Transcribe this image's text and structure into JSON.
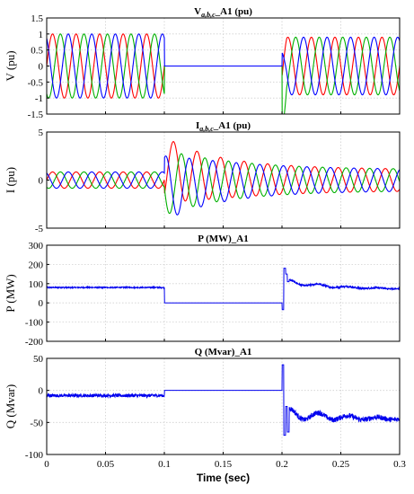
{
  "chart_data": [
    {
      "type": "line",
      "title_parts": [
        "V",
        "a,b,c",
        "_A1 (pu)"
      ],
      "ylabel": "V (pu)",
      "xlabel": "",
      "xlim": [
        0,
        0.3
      ],
      "ylim": [
        -1.5,
        1.5
      ],
      "yticks": [
        -1.5,
        -1,
        -0.5,
        0,
        0.5,
        1,
        1.5
      ],
      "ytick_labels": [
        "-1.5",
        "-1",
        "-0.5",
        "0",
        "0.5",
        "1",
        "1.5"
      ],
      "xticks": [
        0,
        0.05,
        0.1,
        0.15,
        0.2,
        0.25,
        0.3
      ],
      "grid": true,
      "series": [
        {
          "color": "#ff0000",
          "phase_deg": 0
        },
        {
          "color": "#00b000",
          "phase_deg": -120
        },
        {
          "color": "#0000ff",
          "phase_deg": 120
        }
      ],
      "segments": [
        {
          "from": 0,
          "to": 0.1,
          "amplitude": 1.0
        },
        {
          "from": 0.1,
          "to": 0.2,
          "amplitude": 0
        },
        {
          "from": 0.2,
          "to": 0.3,
          "amplitude": 0.9
        }
      ],
      "frequency_hz": 50
    },
    {
      "type": "line",
      "title_parts": [
        "I",
        "a,b,c",
        "_A1 (pu)"
      ],
      "ylabel": "I (pu)",
      "xlabel": "",
      "xlim": [
        0,
        0.3
      ],
      "ylim": [
        -5,
        5
      ],
      "yticks": [
        -5,
        0,
        5
      ],
      "ytick_labels": [
        "-5",
        "0",
        "5"
      ],
      "xticks": [
        0,
        0.05,
        0.1,
        0.15,
        0.2,
        0.25,
        0.3
      ],
      "grid": true,
      "series": [
        {
          "color": "#ff0000",
          "phase_deg": 0
        },
        {
          "color": "#00b000",
          "phase_deg": -120
        },
        {
          "color": "#0000ff",
          "phase_deg": 120
        }
      ],
      "prefault_amplitude": 0.85,
      "fault_start": 0.1,
      "fault_peak_amplitude": 3.4,
      "fault_decay_amplitude_end": 1.1,
      "frequency_hz": 50
    },
    {
      "type": "line",
      "title": "P (MW)_A1",
      "ylabel": "P (MW)",
      "xlabel": "",
      "xlim": [
        0,
        0.3
      ],
      "ylim": [
        -200,
        300
      ],
      "yticks": [
        -200,
        -100,
        0,
        100,
        200,
        300
      ],
      "ytick_labels": [
        "-200",
        "-100",
        "0",
        "100",
        "200",
        "300"
      ],
      "xticks": [
        0,
        0.05,
        0.1,
        0.15,
        0.2,
        0.25,
        0.3
      ],
      "grid": true,
      "series": [
        {
          "color": "#0000ee"
        }
      ],
      "levels": [
        {
          "from": 0,
          "to": 0.1,
          "value": 80
        },
        {
          "from": 0.1,
          "to": 0.2,
          "value": 0
        },
        {
          "from": 0.2,
          "to": 0.3,
          "value_start": 115,
          "value_end": 70
        }
      ],
      "transients": [
        [
          0.2,
          -35,
          180,
          150,
          110
        ]
      ]
    },
    {
      "type": "line",
      "title": "Q (Mvar)_A1",
      "ylabel": "Q (Mvar)",
      "xlabel": "Time (sec)",
      "xlim": [
        0,
        0.3
      ],
      "ylim": [
        -100,
        50
      ],
      "yticks": [
        -100,
        -50,
        0,
        50
      ],
      "ytick_labels": [
        "-100",
        "-50",
        "0",
        "50"
      ],
      "xticks": [
        0,
        0.05,
        0.1,
        0.15,
        0.2,
        0.25,
        0.3
      ],
      "xtick_labels": [
        "0",
        "0.05",
        "0.1",
        "0.15",
        "0.2",
        "0.25",
        "0.3"
      ],
      "grid": true,
      "series": [
        {
          "color": "#0000ee"
        }
      ],
      "levels": [
        {
          "from": 0,
          "to": 0.1,
          "value": -8
        },
        {
          "from": 0.1,
          "to": 0.2,
          "value": 0
        },
        {
          "from": 0.2,
          "to": 0.3,
          "value_start": -35,
          "value_end": -45
        }
      ],
      "transients": [
        [
          0.2,
          40,
          -70,
          -25,
          -65
        ]
      ]
    }
  ]
}
